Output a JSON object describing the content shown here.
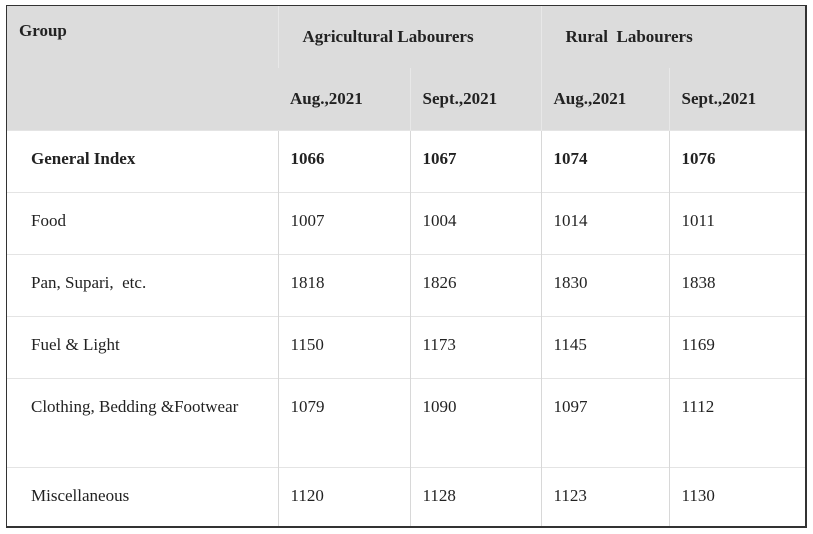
{
  "table": {
    "group_header": "Group",
    "groups": [
      "Agricultural Labourers",
      "Rural  Labourers"
    ],
    "months": [
      "Aug.,2021",
      "Sept.,2021",
      "Aug.,2021",
      "Sept.,2021"
    ],
    "rows": [
      {
        "label": "General Index",
        "values": [
          1066,
          1067,
          1074,
          1076
        ]
      },
      {
        "label": "Food",
        "values": [
          1007,
          1004,
          1014,
          1011
        ]
      },
      {
        "label": "Pan, Supari,  etc.",
        "values": [
          1818,
          1826,
          1830,
          1838
        ]
      },
      {
        "label": "Fuel & Light",
        "values": [
          1150,
          1173,
          1145,
          1169
        ]
      },
      {
        "label": "Clothing, Bedding &Footwear",
        "values": [
          1079,
          1090,
          1097,
          1112
        ]
      },
      {
        "label": "Miscellaneous",
        "values": [
          1120,
          1128,
          1123,
          1130
        ]
      }
    ]
  }
}
